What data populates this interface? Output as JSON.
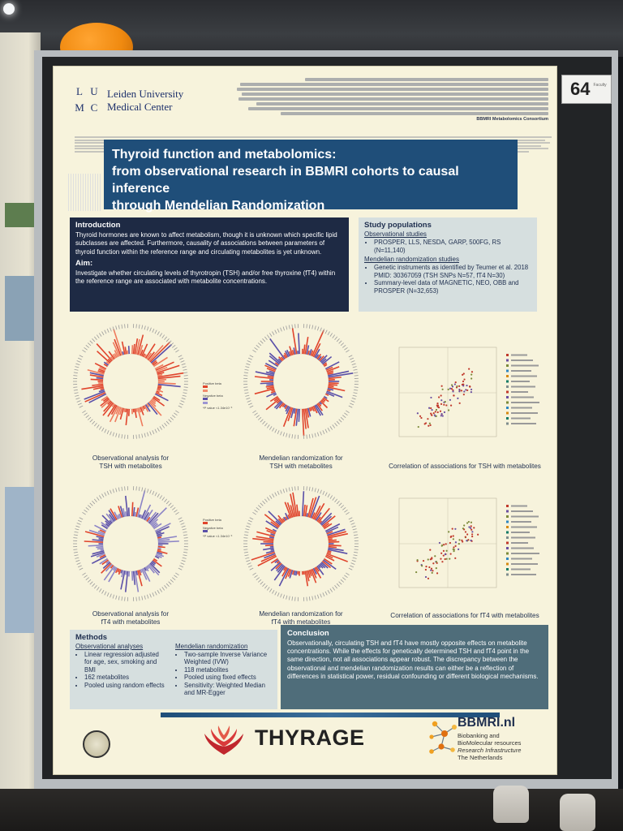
{
  "poster": {
    "booth_number": "64",
    "booth_number_sub": "Faculty",
    "institution": {
      "logo_letters": [
        "L",
        "U",
        "M",
        "C"
      ],
      "name_line1": "Leiden University",
      "name_line2": "Medical Center"
    },
    "consortium": "BBMRI Metabolomics Consortium",
    "title_lines": [
      "Thyroid function and metabolomics:",
      "from observational research in BBMRI cohorts to causal inference",
      "through Mendelian Randomization"
    ],
    "introduction": {
      "heading": "Introduction",
      "text": "Thyroid hormones are known to affect metabolism, though it is unknown which specific lipid subclasses are affected. Furthermore, causality of associations between parameters of thyroid function within the reference range and circulating metabolites is yet unknown.",
      "aim_heading": "Aim:",
      "aim_text": "Investigate whether circulating levels of thyrotropin (TSH) and/or free thyroxine (fT4) within the reference range are associated with metabolite concentrations."
    },
    "study_populations": {
      "heading": "Study populations",
      "observational_heading": "Observational studies",
      "observational_items": [
        "PROSPER, LLS, NESDA, GARP, 500FG, RS (N=11,140)"
      ],
      "mr_heading": "Mendelian randomization studies",
      "mr_items": [
        "Genetic instruments as identified by Teumer et al. 2018 PMID: 30367059 (TSH SNPs N=57, fT4 N=30)",
        "Summary-level data of MAGNETIC, NEO, OBB and PROSPER (N=32,653)"
      ]
    },
    "figures": {
      "row1": {
        "obs_caption": [
          "Observational analysis for",
          "TSH with metabolites"
        ],
        "mr_caption": [
          "Mendelian randomization for",
          "TSH with metabolites"
        ],
        "corr_caption": "Correlation of associations for TSH with metabolites"
      },
      "row2": {
        "obs_caption": [
          "Observational analysis for",
          "fT4 with metabolites"
        ],
        "mr_caption": [
          "Mendelian randomization for",
          "fT4 with metabolites"
        ],
        "corr_caption": "Correlation of associations for fT4 with metabolites"
      },
      "legend": {
        "positive_label": "Positive beta",
        "negative_label": "Negative beta",
        "pvalue_note": "*P value <1.34e10⁻³"
      }
    },
    "methods": {
      "heading": "Methods",
      "observational_heading": "Observational analyses",
      "observational_items": [
        "Linear regression adjusted for age, sex, smoking and BMI",
        "162 metabolites",
        "Pooled using random effects"
      ],
      "mr_heading": "Mendelian randomization",
      "mr_items": [
        "Two-sample Inverse Variance Weighted (IVW)",
        "118 metabolites",
        "Pooled using fixed effects",
        "Sensitivity: Weighted Median and MR-Egger"
      ]
    },
    "conclusion": {
      "heading": "Conclusion",
      "text": "Observationally, circulating TSH and fT4 have mostly opposite effects on metabolite concentrations. While the effects for genetically determined TSH and fT4 point in the same direction, not all associations appear robust. The discrepancy between the observational and mendelian randomization results can either be a reflection of differences in statistical power, residual confounding or different biological mechanisms."
    },
    "footer": {
      "thyrage": "THYRAGE",
      "bbmri_name": "BBMRI.nl",
      "bbmri_lines": [
        "Biobanking and",
        "BioMolecular resources",
        "Research Infrastructure",
        "The Netherlands"
      ]
    },
    "colors": {
      "title_band": "#1f4e79",
      "intro_bg": "#1e2a44",
      "panel_bg": "#d6dfdf",
      "conclusion_bg": "#4f6d7a",
      "positive": "#e0442c",
      "negative": "#5a4fa8"
    }
  }
}
